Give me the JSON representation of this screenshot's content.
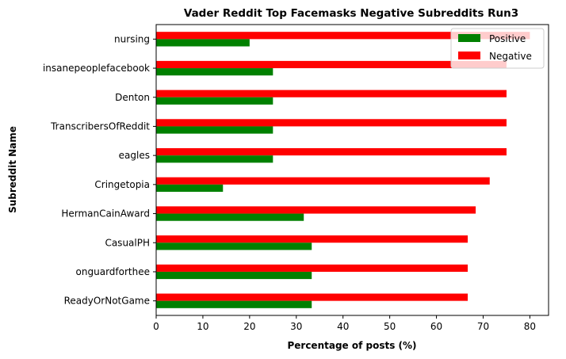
{
  "chart_data": {
    "type": "bar",
    "orientation": "horizontal",
    "title": "Vader Reddit Top Facemasks Negative Subreddits Run3",
    "xlabel": "Percentage of posts (%)",
    "ylabel": "Subreddit Name",
    "xlim": [
      0,
      84
    ],
    "xticks": [
      0,
      10,
      20,
      30,
      40,
      50,
      60,
      70,
      80
    ],
    "categories": [
      "nursing",
      "insanepeoplefacebook",
      "Denton",
      "TranscribersOfReddit",
      "eagles",
      "Cringetopia",
      "HermanCainAward",
      "CasualPH",
      "onguardforthee",
      "ReadyOrNotGame"
    ],
    "series": [
      {
        "name": "Positive",
        "color": "#008000",
        "values": [
          20,
          25,
          25,
          25,
          25,
          14.3,
          31.6,
          33.3,
          33.3,
          33.3
        ]
      },
      {
        "name": "Negative",
        "color": "#ff0000",
        "values": [
          80,
          75,
          75,
          75,
          75,
          71.4,
          68.4,
          66.7,
          66.7,
          66.7
        ]
      }
    ],
    "grid": false,
    "legend_position": "top-right"
  }
}
